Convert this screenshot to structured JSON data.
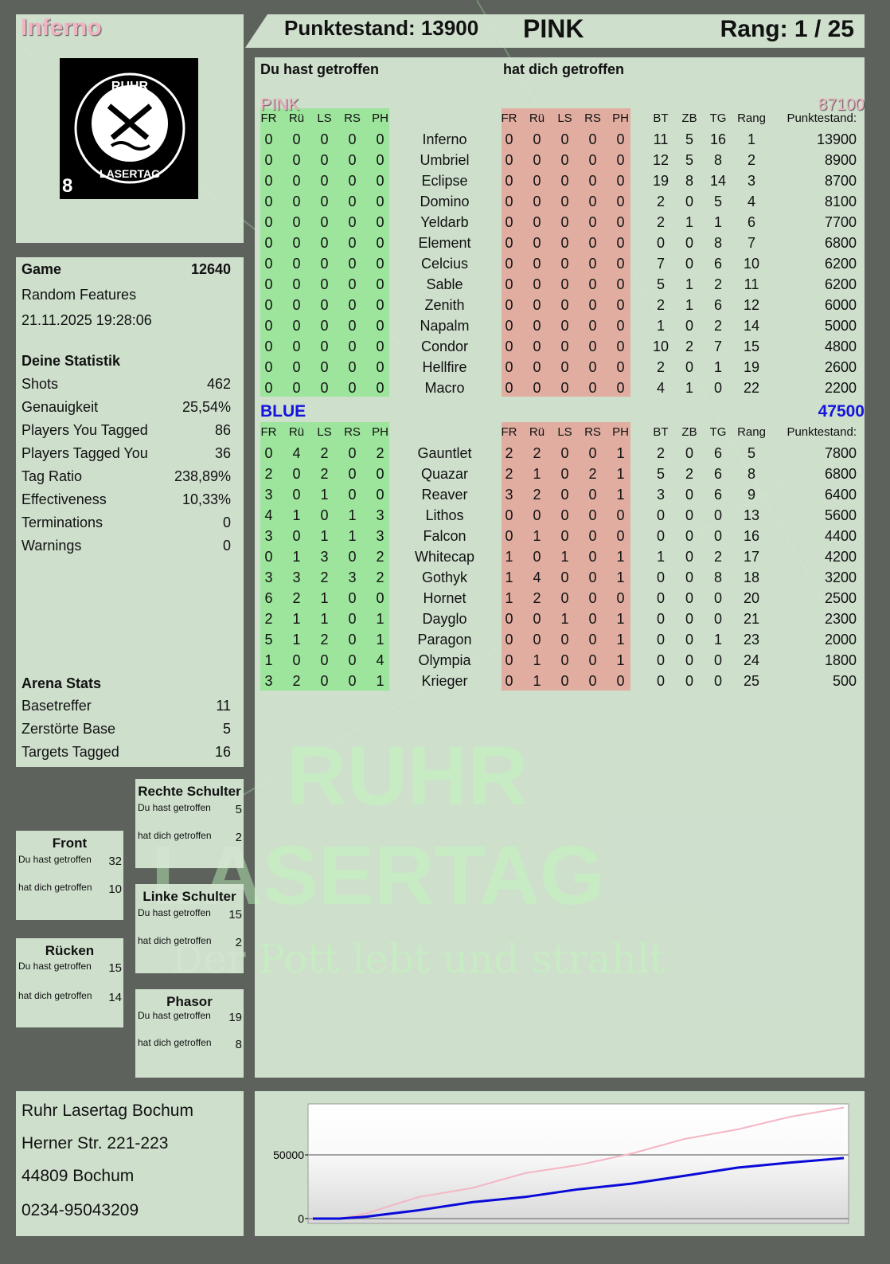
{
  "player": {
    "name": "Inferno",
    "score_label": "Punktestand: 13900",
    "team": "PINK",
    "rank_label": "Rang: 1 / 25"
  },
  "logo": {
    "text_top": "RUHR",
    "text_bottom": "LASERTAG",
    "badge": "8"
  },
  "colors": {
    "pink": "#f2b3c3",
    "blue": "#1414dc",
    "green_cells": "#8ce68c",
    "red_cells": "#e6a096"
  },
  "game": {
    "label": "Game",
    "number": "12640",
    "mode": "Random Features",
    "datetime": "21.11.2025 19:28:06"
  },
  "stats": {
    "title": "Deine Statistik",
    "items": [
      {
        "label": "Shots",
        "value": "462"
      },
      {
        "label": "Genauigkeit",
        "value": "25,54%"
      },
      {
        "label": "Players You Tagged",
        "value": "86"
      },
      {
        "label": "Players Tagged You",
        "value": "36"
      },
      {
        "label": "Tag Ratio",
        "value": "238,89%"
      },
      {
        "label": "Effectiveness",
        "value": "10,33%"
      },
      {
        "label": "Terminations",
        "value": "0"
      },
      {
        "label": "Warnings",
        "value": "0"
      }
    ]
  },
  "arena": {
    "title": "Arena Stats",
    "items": [
      {
        "label": "Basetreffer",
        "value": "11"
      },
      {
        "label": "Zerstörte Base",
        "value": "5"
      },
      {
        "label": "Targets Tagged",
        "value": "16"
      }
    ]
  },
  "zones": {
    "right_shoulder": {
      "title": "Rechte Schulter",
      "hit_label": "Du hast getroffen",
      "hit": "5",
      "got_label": "hat dich getroffen",
      "got": "2"
    },
    "front": {
      "title": "Front",
      "hit_label": "Du hast getroffen",
      "hit": "32",
      "got_label": "hat dich getroffen",
      "got": "10"
    },
    "left_shoulder": {
      "title": "Linke Schulter",
      "hit_label": "Du hast getroffen",
      "hit": "15",
      "got_label": "hat dich getroffen",
      "got": "2"
    },
    "back": {
      "title": "Rücken",
      "hit_label": "Du hast getroffen",
      "hit": "15",
      "got_label": "hat dich getroffen",
      "got": "14"
    },
    "phasor": {
      "title": "Phasor",
      "hit_label": "Du hast getroffen",
      "hit": "19",
      "got_label": "hat dich getroffen",
      "got": "8"
    }
  },
  "main": {
    "you_hit": "Du hast getroffen",
    "hit_you": "hat dich getroffen",
    "columns": [
      "FR",
      "Rü",
      "LS",
      "RS",
      "PH",
      "",
      "FR",
      "Rü",
      "LS",
      "RS",
      "PH",
      "",
      "BT",
      "ZB",
      "TG",
      "Rang",
      "Punktestand:"
    ],
    "teams": [
      {
        "name": "PINK",
        "score": "87100",
        "rows": [
          [
            "0",
            "0",
            "0",
            "0",
            "0",
            "Inferno",
            "0",
            "0",
            "0",
            "0",
            "0",
            "",
            "11",
            "5",
            "16",
            "1",
            "13900"
          ],
          [
            "0",
            "0",
            "0",
            "0",
            "0",
            "Umbriel",
            "0",
            "0",
            "0",
            "0",
            "0",
            "",
            "12",
            "5",
            "8",
            "2",
            "8900"
          ],
          [
            "0",
            "0",
            "0",
            "0",
            "0",
            "Eclipse",
            "0",
            "0",
            "0",
            "0",
            "0",
            "",
            "19",
            "8",
            "14",
            "3",
            "8700"
          ],
          [
            "0",
            "0",
            "0",
            "0",
            "0",
            "Domino",
            "0",
            "0",
            "0",
            "0",
            "0",
            "",
            "2",
            "0",
            "5",
            "4",
            "8100"
          ],
          [
            "0",
            "0",
            "0",
            "0",
            "0",
            "Yeldarb",
            "0",
            "0",
            "0",
            "0",
            "0",
            "",
            "2",
            "1",
            "1",
            "6",
            "7700"
          ],
          [
            "0",
            "0",
            "0",
            "0",
            "0",
            "Element",
            "0",
            "0",
            "0",
            "0",
            "0",
            "",
            "0",
            "0",
            "8",
            "7",
            "6800"
          ],
          [
            "0",
            "0",
            "0",
            "0",
            "0",
            "Celcius",
            "0",
            "0",
            "0",
            "0",
            "0",
            "",
            "7",
            "0",
            "6",
            "10",
            "6200"
          ],
          [
            "0",
            "0",
            "0",
            "0",
            "0",
            "Sable",
            "0",
            "0",
            "0",
            "0",
            "0",
            "",
            "5",
            "1",
            "2",
            "11",
            "6200"
          ],
          [
            "0",
            "0",
            "0",
            "0",
            "0",
            "Zenith",
            "0",
            "0",
            "0",
            "0",
            "0",
            "",
            "2",
            "1",
            "6",
            "12",
            "6000"
          ],
          [
            "0",
            "0",
            "0",
            "0",
            "0",
            "Napalm",
            "0",
            "0",
            "0",
            "0",
            "0",
            "",
            "1",
            "0",
            "2",
            "14",
            "5000"
          ],
          [
            "0",
            "0",
            "0",
            "0",
            "0",
            "Condor",
            "0",
            "0",
            "0",
            "0",
            "0",
            "",
            "10",
            "2",
            "7",
            "15",
            "4800"
          ],
          [
            "0",
            "0",
            "0",
            "0",
            "0",
            "Hellfire",
            "0",
            "0",
            "0",
            "0",
            "0",
            "",
            "2",
            "0",
            "1",
            "19",
            "2600"
          ],
          [
            "0",
            "0",
            "0",
            "0",
            "0",
            "Macro",
            "0",
            "0",
            "0",
            "0",
            "0",
            "",
            "4",
            "1",
            "0",
            "22",
            "2200"
          ]
        ]
      },
      {
        "name": "BLUE",
        "score": "47500",
        "rows": [
          [
            "0",
            "4",
            "2",
            "0",
            "2",
            "Gauntlet",
            "2",
            "2",
            "0",
            "0",
            "1",
            "",
            "2",
            "0",
            "6",
            "5",
            "7800"
          ],
          [
            "2",
            "0",
            "2",
            "0",
            "0",
            "Quazar",
            "2",
            "1",
            "0",
            "2",
            "1",
            "",
            "5",
            "2",
            "6",
            "8",
            "6800"
          ],
          [
            "3",
            "0",
            "1",
            "0",
            "0",
            "Reaver",
            "3",
            "2",
            "0",
            "0",
            "1",
            "",
            "3",
            "0",
            "6",
            "9",
            "6400"
          ],
          [
            "4",
            "1",
            "0",
            "1",
            "3",
            "Lithos",
            "0",
            "0",
            "0",
            "0",
            "0",
            "",
            "0",
            "0",
            "0",
            "13",
            "5600"
          ],
          [
            "3",
            "0",
            "1",
            "1",
            "3",
            "Falcon",
            "0",
            "1",
            "0",
            "0",
            "0",
            "",
            "0",
            "0",
            "0",
            "16",
            "4400"
          ],
          [
            "0",
            "1",
            "3",
            "0",
            "2",
            "Whitecap",
            "1",
            "0",
            "1",
            "0",
            "1",
            "",
            "1",
            "0",
            "2",
            "17",
            "4200"
          ],
          [
            "3",
            "3",
            "2",
            "3",
            "2",
            "Gothyk",
            "1",
            "4",
            "0",
            "0",
            "1",
            "",
            "0",
            "0",
            "8",
            "18",
            "3200"
          ],
          [
            "6",
            "2",
            "1",
            "0",
            "0",
            "Hornet",
            "1",
            "2",
            "0",
            "0",
            "0",
            "",
            "0",
            "0",
            "0",
            "20",
            "2500"
          ],
          [
            "2",
            "1",
            "1",
            "0",
            "1",
            "Dayglo",
            "0",
            "0",
            "1",
            "0",
            "1",
            "",
            "0",
            "0",
            "0",
            "21",
            "2300"
          ],
          [
            "5",
            "1",
            "2",
            "0",
            "1",
            "Paragon",
            "0",
            "0",
            "0",
            "0",
            "1",
            "",
            "0",
            "0",
            "1",
            "23",
            "2000"
          ],
          [
            "1",
            "0",
            "0",
            "0",
            "4",
            "Olympia",
            "0",
            "1",
            "0",
            "0",
            "1",
            "",
            "0",
            "0",
            "0",
            "24",
            "1800"
          ],
          [
            "3",
            "2",
            "0",
            "0",
            "1",
            "Krieger",
            "0",
            "1",
            "0",
            "0",
            "0",
            "",
            "0",
            "0",
            "0",
            "25",
            "500"
          ]
        ]
      }
    ]
  },
  "watermark": {
    "line1": "RUHR",
    "line2": "LASERTAG",
    "slogan": "Der Pott lebt und strahlt"
  },
  "address": {
    "name": "Ruhr Lasertag Bochum",
    "street": "Herner Str. 221-223",
    "city": "44809 Bochum",
    "phone": "0234-95043209"
  },
  "chart_data": {
    "type": "line",
    "title": "",
    "xlabel": "",
    "ylabel": "",
    "ylim": [
      0,
      90000
    ],
    "yticks": [
      "0",
      "50000"
    ],
    "grid": "horizontal at 50000",
    "legend": "none",
    "x": [
      0,
      0.05,
      0.1,
      0.2,
      0.3,
      0.4,
      0.5,
      0.6,
      0.7,
      0.8,
      0.9,
      1.0
    ],
    "series": [
      {
        "color": "#f4b6c4",
        "values": [
          0,
          0,
          4000,
          17000,
          24000,
          35700,
          42000,
          51000,
          62500,
          70000,
          80000,
          87100
        ]
      },
      {
        "color": "#0a0ad8",
        "values": [
          0,
          0,
          1500,
          6600,
          12900,
          17000,
          23000,
          27400,
          33600,
          40000,
          44000,
          47500
        ]
      }
    ]
  }
}
